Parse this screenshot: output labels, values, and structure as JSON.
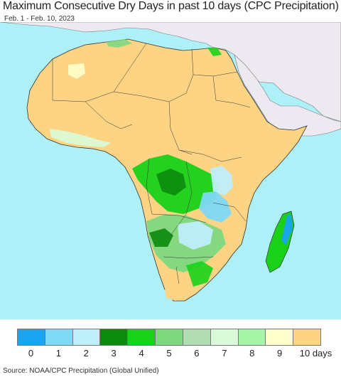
{
  "header": {
    "title": "Maximum Consecutive Dry Days in past 10 days (CPC Precipitation)",
    "date_range": "Feb. 1 - Feb. 10, 2023"
  },
  "legend": {
    "items": [
      {
        "label": "0",
        "color": "#1aa3ef"
      },
      {
        "label": "1",
        "color": "#7ed8f6"
      },
      {
        "label": "2",
        "color": "#bfeefb"
      },
      {
        "label": "3",
        "color": "#0c8a0c"
      },
      {
        "label": "4",
        "color": "#19d119"
      },
      {
        "label": "5",
        "color": "#7fd87f"
      },
      {
        "label": "6",
        "color": "#b2dcb2"
      },
      {
        "label": "7",
        "color": "#d9fbd9"
      },
      {
        "label": "8",
        "color": "#a6f5a6"
      },
      {
        "label": "9",
        "color": "#ffffcc"
      },
      {
        "label": "10 days",
        "color": "#fdd484"
      }
    ]
  },
  "map": {
    "ocean_color": "#aef0f8",
    "outside_region_color": "#ede9f0",
    "dominant_land_color": "#fdd484"
  },
  "footer": {
    "source": "Source: NOAA/CPC Precipitation (Global Unified)"
  }
}
